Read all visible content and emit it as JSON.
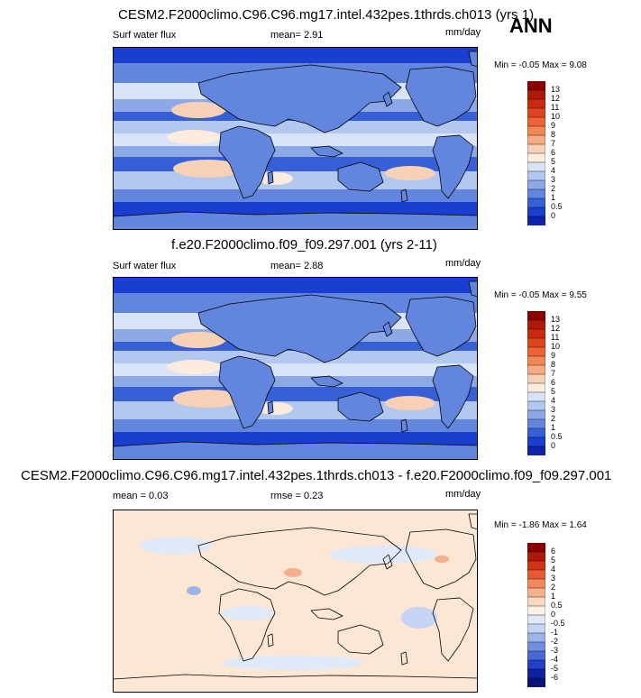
{
  "season": "ANN",
  "panels": [
    {
      "title": "CESM2.F2000climo.C96.C96.mg17.intel.432pes.1thrds.ch013 (yrs 1)",
      "left_label": "Surf water flux",
      "mean_text": "mean=   2.91",
      "units": "mm/day",
      "minmax": "Min =  -0.05 Max =   9.08",
      "levels": [
        "13",
        "12",
        "11",
        "10",
        "9",
        "8",
        "7",
        "6",
        "5",
        "4",
        "3",
        "2",
        "1",
        "0.5",
        "0"
      ],
      "colors": [
        "#8b0000",
        "#b01808",
        "#cc2a10",
        "#de4420",
        "#ee6236",
        "#f38857",
        "#f6ab84",
        "#f8d0b6",
        "#fbecdf",
        "#d8e4f6",
        "#b2c8ee",
        "#8ca8e6",
        "#6285dd",
        "#3860d6",
        "#1a3ecf",
        "#0e24a8"
      ],
      "map_base": "#3a62dc"
    },
    {
      "title": "f.e20.F2000climo.f09_f09.297.001 (yrs 2-11)",
      "left_label": "Surf water flux",
      "mean_text": "mean=   2.88",
      "units": "mm/day",
      "minmax": "Min =  -0.05 Max =   9.55",
      "levels": [
        "13",
        "12",
        "11",
        "10",
        "9",
        "8",
        "7",
        "6",
        "5",
        "4",
        "3",
        "2",
        "1",
        "0.5",
        "0"
      ],
      "colors": [
        "#8b0000",
        "#b01808",
        "#cc2a10",
        "#de4420",
        "#ee6236",
        "#f38857",
        "#f6ab84",
        "#f8d0b6",
        "#fbecdf",
        "#d8e4f6",
        "#b2c8ee",
        "#8ca8e6",
        "#6285dd",
        "#3860d6",
        "#1a3ecf",
        "#0e24a8"
      ],
      "map_base": "#3a62dc"
    },
    {
      "title": "CESM2.F2000climo.C96.C96.mg17.intel.432pes.1thrds.ch013 - f.e20.F2000climo.f09_f09.297.001",
      "left_label": "mean =   0.03",
      "mean_text": "rmse =   0.23",
      "units": "mm/day",
      "minmax": "Min =  -1.86 Max =   1.64",
      "levels": [
        "6",
        "5",
        "4",
        "3",
        "2",
        "1",
        "0.5",
        "0",
        "-0.5",
        "-1",
        "-2",
        "-3",
        "-4",
        "-5",
        "-6"
      ],
      "colors": [
        "#8b0000",
        "#b01808",
        "#d2321a",
        "#e85a34",
        "#f08860",
        "#f5b08c",
        "#f9d8c2",
        "#fdf0e6",
        "#dfe9f8",
        "#c4d4f2",
        "#9cb4e8",
        "#7090de",
        "#4868d4",
        "#2240c6",
        "#0e22a0",
        "#081478"
      ],
      "map_base": "#fde6d4"
    }
  ]
}
